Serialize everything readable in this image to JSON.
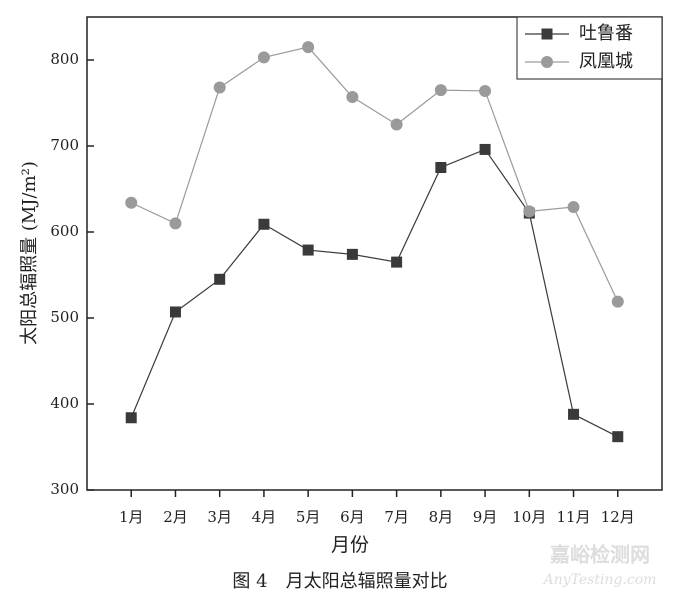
{
  "chart_data": {
    "type": "line",
    "xlabel": "月份",
    "ylabel": "太阳总辐照量 (MJ/m²)",
    "caption": "图 4　月太阳总辐照量对比",
    "categories": [
      "1月",
      "2月",
      "3月",
      "4月",
      "5月",
      "6月",
      "7月",
      "8月",
      "9月",
      "10月",
      "11月",
      "12月"
    ],
    "series": [
      {
        "name": "吐鲁番",
        "color": "#3a3a3a",
        "marker": "square",
        "values": [
          384,
          507,
          545,
          609,
          579,
          574,
          565,
          675,
          696,
          622,
          388,
          362
        ]
      },
      {
        "name": "凤凰城",
        "color": "#9a9a9a",
        "marker": "circle",
        "values": [
          634,
          610,
          768,
          803,
          815,
          757,
          725,
          765,
          764,
          624,
          629,
          519
        ]
      }
    ],
    "ylim": [
      300,
      850
    ],
    "yticks": [
      300,
      400,
      500,
      600,
      700,
      800
    ],
    "legend": "top-right"
  },
  "watermark": {
    "title": "嘉峪检测网",
    "url": "AnyTesting.com"
  }
}
